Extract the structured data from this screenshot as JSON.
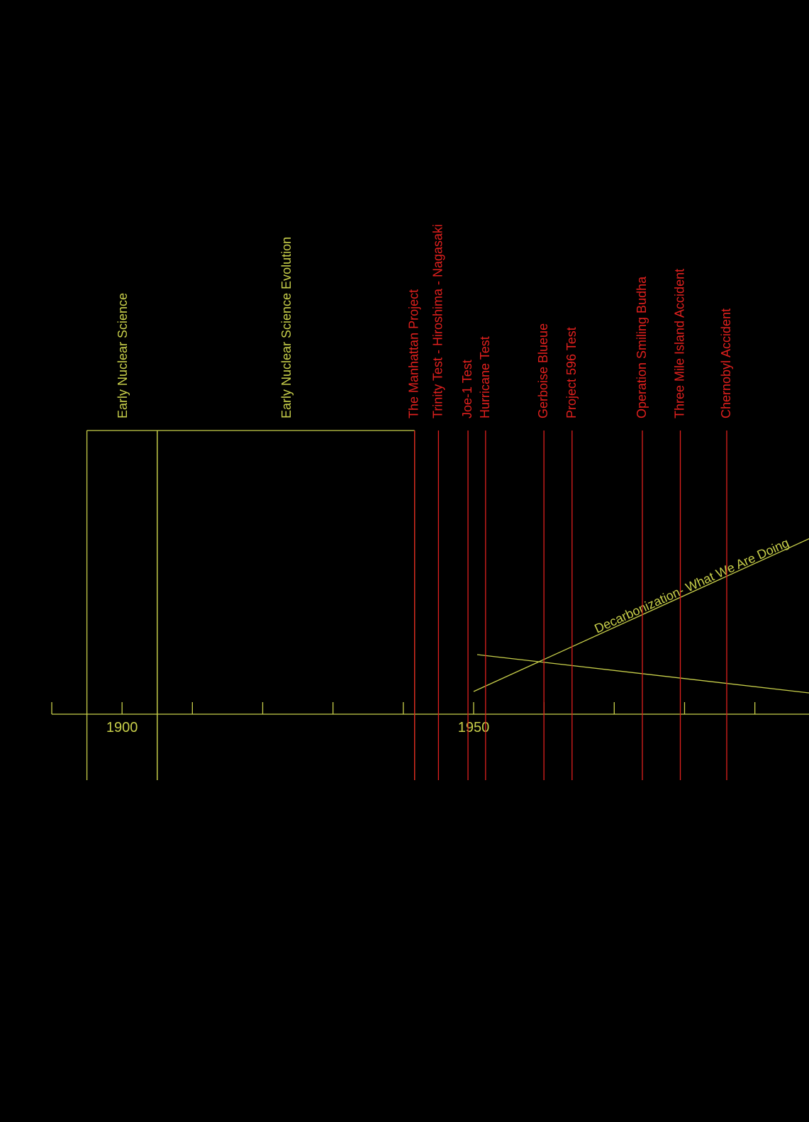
{
  "axis": {
    "xlim": [
      1890,
      1997.7
    ],
    "ticks": [
      1890,
      1900,
      1910,
      1920,
      1930,
      1940,
      1950,
      1960,
      1970,
      1980,
      1990
    ],
    "labeled_ticks": [
      1900,
      1950
    ]
  },
  "periods": [
    {
      "label": "Early Nuclear Science",
      "start": 1895,
      "end": 1905
    },
    {
      "label": "Early Nuclear Science Evolution",
      "start": 1905,
      "end": 1941.6
    }
  ],
  "events": [
    {
      "label": "The Manhattan Project",
      "year": 1941.6
    },
    {
      "label": "Trinity Test - Hiroshima - Nagasaki",
      "year": 1945
    },
    {
      "label": "Joe-1 Test",
      "year": 1949.2
    },
    {
      "label": "Hurricane Test",
      "year": 1951.7
    },
    {
      "label": "Gerboise Blueue",
      "year": 1960
    },
    {
      "label": "Project 596 Test",
      "year": 1964
    },
    {
      "label": "Operation Smiling Budha",
      "year": 1974
    },
    {
      "label": "Three Mile Island Accident",
      "year": 1979.4
    },
    {
      "label": "Chernobyl Accident",
      "year": 1986
    }
  ],
  "trend": {
    "label": "Decarbonization- What We Are Doing"
  }
}
